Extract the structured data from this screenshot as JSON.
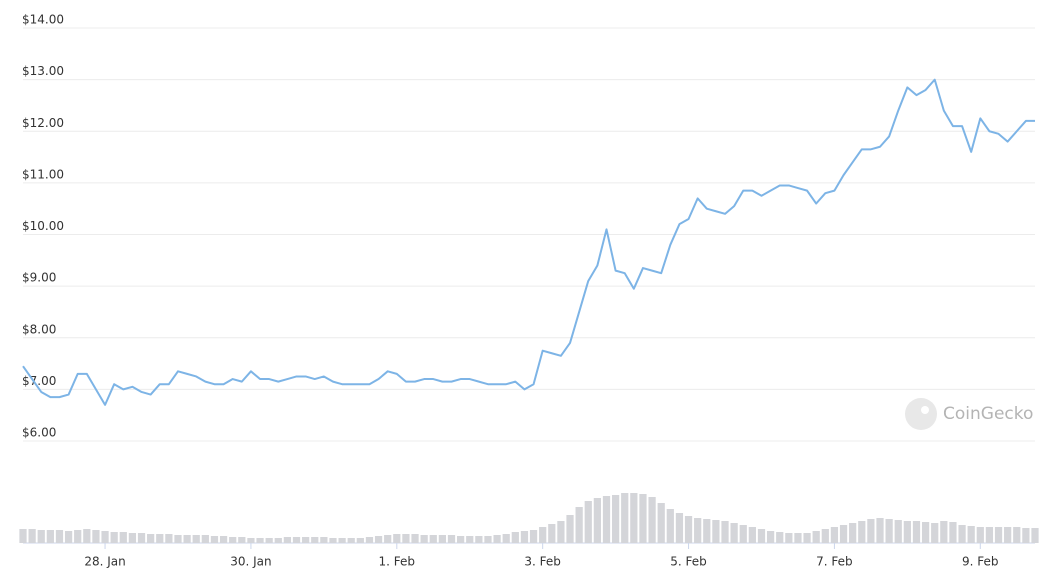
{
  "chart_data": {
    "type": "line",
    "watermark": "CoinGecko",
    "xlim": [
      0,
      111
    ],
    "xticks": [
      {
        "value": 9,
        "label": "28. Jan"
      },
      {
        "value": 25,
        "label": "30. Jan"
      },
      {
        "value": 41,
        "label": "1. Feb"
      },
      {
        "value": 57,
        "label": "3. Feb"
      },
      {
        "value": 73,
        "label": "5. Feb"
      },
      {
        "value": 89,
        "label": "7. Feb"
      },
      {
        "value": 105,
        "label": "9. Feb"
      }
    ],
    "ylim": [
      6,
      14
    ],
    "yticks": [
      {
        "value": 6,
        "label": "$6.00"
      },
      {
        "value": 7,
        "label": "$7.00"
      },
      {
        "value": 8,
        "label": "$8.00"
      },
      {
        "value": 9,
        "label": "$9.00"
      },
      {
        "value": 10,
        "label": "$10.00"
      },
      {
        "value": 11,
        "label": "$11.00"
      },
      {
        "value": 12,
        "label": "$12.00"
      },
      {
        "value": 13,
        "label": "$13.00"
      },
      {
        "value": 14,
        "label": "$14.00"
      }
    ],
    "grid": true,
    "series": [
      {
        "color": "#7db4e6",
        "values": [
          7.45,
          7.2,
          6.95,
          6.85,
          6.85,
          6.9,
          7.3,
          7.3,
          7.0,
          6.7,
          7.1,
          7.0,
          7.05,
          6.95,
          6.9,
          7.1,
          7.1,
          7.35,
          7.3,
          7.25,
          7.15,
          7.1,
          7.1,
          7.2,
          7.15,
          7.35,
          7.2,
          7.2,
          7.15,
          7.2,
          7.25,
          7.25,
          7.2,
          7.25,
          7.15,
          7.1,
          7.1,
          7.1,
          7.1,
          7.2,
          7.35,
          7.3,
          7.15,
          7.15,
          7.2,
          7.2,
          7.15,
          7.15,
          7.2,
          7.2,
          7.15,
          7.1,
          7.1,
          7.1,
          7.15,
          7.0,
          7.1,
          7.75,
          7.7,
          7.65,
          7.9,
          8.5,
          9.1,
          9.4,
          10.1,
          9.3,
          9.25,
          8.95,
          9.35,
          9.3,
          9.25,
          9.8,
          10.2,
          10.3,
          10.7,
          10.5,
          10.45,
          10.4,
          10.55,
          10.85,
          10.85,
          10.75,
          10.85,
          10.95,
          10.95,
          10.9,
          10.85,
          10.6,
          10.8,
          10.85,
          11.15,
          11.4,
          11.65,
          11.65,
          11.7,
          11.9,
          12.4,
          12.85,
          12.7,
          12.8,
          13.0,
          12.4,
          12.1,
          12.1,
          11.6,
          12.25,
          12.0,
          11.95,
          11.8,
          12.0,
          12.2,
          12.2
        ]
      }
    ],
    "volume": {
      "color": "#d4d5d9",
      "values": [
        14,
        14,
        13,
        13,
        13,
        12,
        13,
        14,
        13,
        12,
        11,
        11,
        10,
        10,
        9,
        9,
        9,
        8,
        8,
        8,
        8,
        7,
        7,
        6,
        6,
        5,
        5,
        5,
        5,
        6,
        6,
        6,
        6,
        6,
        5,
        5,
        5,
        5,
        6,
        7,
        8,
        9,
        9,
        9,
        8,
        8,
        8,
        8,
        7,
        7,
        7,
        7,
        8,
        9,
        11,
        12,
        13,
        16,
        19,
        22,
        28,
        36,
        42,
        45,
        47,
        48,
        50,
        50,
        49,
        46,
        40,
        34,
        30,
        27,
        25,
        24,
        23,
        22,
        20,
        18,
        16,
        14,
        12,
        11,
        10,
        10,
        10,
        12,
        14,
        16,
        18,
        20,
        22,
        24,
        25,
        24,
        23,
        22,
        22,
        21,
        20,
        22,
        21,
        18,
        17,
        16,
        16,
        16,
        16,
        16,
        15,
        15
      ]
    }
  }
}
